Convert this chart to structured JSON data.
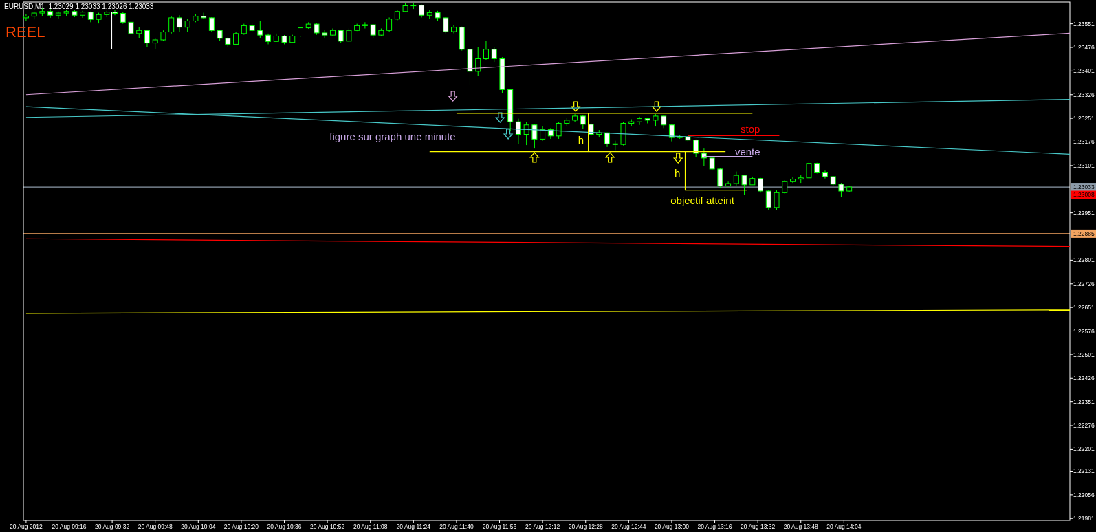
{
  "chart_data": {
    "type": "candlestick",
    "title": "EURUSD,M1  1.23029 1.23033 1.23026 1.23033",
    "subtitle": "REEL",
    "annotations": [
      "figure sur graph une minute",
      "stop",
      "vente",
      "h",
      "h",
      "objectif atteint"
    ],
    "xlim": [
      "2012-08-20T08:59",
      "2012-08-20T15:28"
    ],
    "xticks": [
      {
        "value": "2012-08-20T09:00",
        "label": "20 Aug 2012"
      },
      {
        "value": "2012-08-20T09:16",
        "label": "20 Aug 09:16"
      },
      {
        "value": "2012-08-20T09:32",
        "label": "20 Aug 09:32"
      },
      {
        "value": "2012-08-20T09:48",
        "label": "20 Aug 09:48"
      },
      {
        "value": "2012-08-20T10:04",
        "label": "20 Aug 10:04"
      },
      {
        "value": "2012-08-20T10:20",
        "label": "20 Aug 10:20"
      },
      {
        "value": "2012-08-20T10:36",
        "label": "20 Aug 10:36"
      },
      {
        "value": "2012-08-20T10:52",
        "label": "20 Aug 10:52"
      },
      {
        "value": "2012-08-20T11:08",
        "label": "20 Aug 11:08"
      },
      {
        "value": "2012-08-20T11:24",
        "label": "20 Aug 11:24"
      },
      {
        "value": "2012-08-20T11:40",
        "label": "20 Aug 11:40"
      },
      {
        "value": "2012-08-20T11:56",
        "label": "20 Aug 11:56"
      },
      {
        "value": "2012-08-20T12:12",
        "label": "20 Aug 12:12"
      },
      {
        "value": "2012-08-20T12:28",
        "label": "20 Aug 12:28"
      },
      {
        "value": "2012-08-20T12:44",
        "label": "20 Aug 12:44"
      },
      {
        "value": "2012-08-20T13:00",
        "label": "20 Aug 13:00"
      },
      {
        "value": "2012-08-20T13:16",
        "label": "20 Aug 13:16"
      },
      {
        "value": "2012-08-20T13:32",
        "label": "20 Aug 13:32"
      },
      {
        "value": "2012-08-20T13:48",
        "label": "20 Aug 13:48"
      },
      {
        "value": "2012-08-20T14:04",
        "label": "20 Aug 14:04"
      }
    ],
    "ylim": [
      1.21975,
      1.2362
    ],
    "yticks": [
      1.23551,
      1.23476,
      1.23401,
      1.23326,
      1.23251,
      1.23176,
      1.23101,
      1.22951,
      1.22801,
      1.22726,
      1.22651,
      1.22576,
      1.22501,
      1.22426,
      1.22351,
      1.22276,
      1.22201,
      1.22131,
      1.22056,
      1.21981
    ],
    "grid": false,
    "ref_lines": [
      {
        "axis": "y",
        "value": 1.23033,
        "label": "1.23033",
        "color": "#8c9aa8"
      },
      {
        "axis": "y",
        "value": 1.23008,
        "label": "1.23008",
        "color": "#ff0000"
      },
      {
        "axis": "y",
        "value": 1.22885,
        "label": "1.22885",
        "color": "#f4a460"
      }
    ],
    "series": [
      {
        "type": "candlestick",
        "color": "#00ff00",
        "x": [
          "2012-08-20T09:00",
          "2012-08-20T09:03",
          "2012-08-20T09:06",
          "2012-08-20T09:09",
          "2012-08-20T09:12",
          "2012-08-20T09:15",
          "2012-08-20T09:18",
          "2012-08-20T09:21",
          "2012-08-20T09:24",
          "2012-08-20T09:27",
          "2012-08-20T09:30",
          "2012-08-20T09:33",
          "2012-08-20T09:36",
          "2012-08-20T09:39",
          "2012-08-20T09:42",
          "2012-08-20T09:45",
          "2012-08-20T09:48",
          "2012-08-20T09:51",
          "2012-08-20T09:54",
          "2012-08-20T09:57",
          "2012-08-20T10:00",
          "2012-08-20T10:03",
          "2012-08-20T10:06",
          "2012-08-20T10:09",
          "2012-08-20T10:12",
          "2012-08-20T10:15",
          "2012-08-20T10:18",
          "2012-08-20T10:21",
          "2012-08-20T10:24",
          "2012-08-20T10:27",
          "2012-08-20T10:30",
          "2012-08-20T10:33",
          "2012-08-20T10:36",
          "2012-08-20T10:39",
          "2012-08-20T10:42",
          "2012-08-20T10:45",
          "2012-08-20T10:48",
          "2012-08-20T10:51",
          "2012-08-20T10:54",
          "2012-08-20T10:57",
          "2012-08-20T11:00",
          "2012-08-20T11:03",
          "2012-08-20T11:06",
          "2012-08-20T11:09",
          "2012-08-20T11:12",
          "2012-08-20T11:15",
          "2012-08-20T11:18",
          "2012-08-20T11:21",
          "2012-08-20T11:24",
          "2012-08-20T11:27",
          "2012-08-20T11:30",
          "2012-08-20T11:33",
          "2012-08-20T11:36",
          "2012-08-20T11:39",
          "2012-08-20T11:42",
          "2012-08-20T11:45",
          "2012-08-20T11:48",
          "2012-08-20T11:51",
          "2012-08-20T11:54",
          "2012-08-20T11:57",
          "2012-08-20T12:00",
          "2012-08-20T12:03",
          "2012-08-20T12:06",
          "2012-08-20T12:09",
          "2012-08-20T12:12",
          "2012-08-20T12:15",
          "2012-08-20T12:18",
          "2012-08-20T12:21",
          "2012-08-20T12:24",
          "2012-08-20T12:27",
          "2012-08-20T12:30",
          "2012-08-20T12:33",
          "2012-08-20T12:36",
          "2012-08-20T12:39",
          "2012-08-20T12:42",
          "2012-08-20T12:45",
          "2012-08-20T12:48",
          "2012-08-20T12:51",
          "2012-08-20T12:54",
          "2012-08-20T12:57",
          "2012-08-20T13:00",
          "2012-08-20T13:03",
          "2012-08-20T13:06",
          "2012-08-20T13:09",
          "2012-08-20T13:12",
          "2012-08-20T13:15",
          "2012-08-20T13:18",
          "2012-08-20T13:21",
          "2012-08-20T13:24",
          "2012-08-20T13:27",
          "2012-08-20T13:30",
          "2012-08-20T13:33",
          "2012-08-20T13:36",
          "2012-08-20T13:39",
          "2012-08-20T13:42",
          "2012-08-20T13:45",
          "2012-08-20T13:48",
          "2012-08-20T13:51",
          "2012-08-20T13:54",
          "2012-08-20T13:57",
          "2012-08-20T14:00",
          "2012-08-20T14:03",
          "2012-08-20T14:06"
        ],
        "ohlc": [
          [
            1.2357,
            1.23582,
            1.2356,
            1.23575
          ],
          [
            1.23575,
            1.2359,
            1.23565,
            1.23585
          ],
          [
            1.23585,
            1.236,
            1.23575,
            1.2359
          ],
          [
            1.2359,
            1.23598,
            1.2357,
            1.23578
          ],
          [
            1.23578,
            1.2359,
            1.23568,
            1.23585
          ],
          [
            1.23585,
            1.23595,
            1.23575,
            1.2359
          ],
          [
            1.2359,
            1.23594,
            1.23572,
            1.23578
          ],
          [
            1.23578,
            1.23592,
            1.2357,
            1.23588
          ],
          [
            1.23588,
            1.2359,
            1.23556,
            1.23565
          ],
          [
            1.23565,
            1.23586,
            1.23552,
            1.2358
          ],
          [
            1.2358,
            1.23592,
            1.23572,
            1.23588
          ],
          [
            1.23588,
            1.23596,
            1.23578,
            1.23584
          ],
          [
            1.23584,
            1.23588,
            1.23551,
            1.23556
          ],
          [
            1.23556,
            1.2356,
            1.23496,
            1.2352
          ],
          [
            1.2352,
            1.2354,
            1.23506,
            1.2353
          ],
          [
            1.2353,
            1.23532,
            1.23476,
            1.2349
          ],
          [
            1.2349,
            1.23505,
            1.23471,
            1.235
          ],
          [
            1.235,
            1.2353,
            1.23496,
            1.23525
          ],
          [
            1.23525,
            1.23576,
            1.2352,
            1.2357
          ],
          [
            1.2357,
            1.23578,
            1.23526,
            1.2354
          ],
          [
            1.2354,
            1.23566,
            1.23526,
            1.2356
          ],
          [
            1.2356,
            1.23582,
            1.23556,
            1.23575
          ],
          [
            1.23575,
            1.23586,
            1.23566,
            1.2357
          ],
          [
            1.2357,
            1.23572,
            1.23526,
            1.2353
          ],
          [
            1.2353,
            1.23532,
            1.23496,
            1.23505
          ],
          [
            1.23505,
            1.23508,
            1.23478,
            1.23486
          ],
          [
            1.23486,
            1.23526,
            1.23484,
            1.2352
          ],
          [
            1.2352,
            1.23551,
            1.23516,
            1.23545
          ],
          [
            1.23545,
            1.23552,
            1.23526,
            1.2353
          ],
          [
            1.2353,
            1.23561,
            1.23506,
            1.23515
          ],
          [
            1.23515,
            1.2352,
            1.23486,
            1.23495
          ],
          [
            1.23495,
            1.2352,
            1.23494,
            1.23512
          ],
          [
            1.23512,
            1.23515,
            1.23486,
            1.23492
          ],
          [
            1.23492,
            1.23516,
            1.2349,
            1.23512
          ],
          [
            1.23512,
            1.23541,
            1.2351,
            1.23538
          ],
          [
            1.23538,
            1.23556,
            1.23535,
            1.2355
          ],
          [
            1.2355,
            1.23552,
            1.23516,
            1.23522
          ],
          [
            1.23522,
            1.23531,
            1.23506,
            1.23515
          ],
          [
            1.23515,
            1.23536,
            1.23511,
            1.2353
          ],
          [
            1.2353,
            1.23531,
            1.23491,
            1.23496
          ],
          [
            1.23496,
            1.23536,
            1.23494,
            1.2353
          ],
          [
            1.2353,
            1.23551,
            1.23528,
            1.23545
          ],
          [
            1.23545,
            1.23556,
            1.23536,
            1.23548
          ],
          [
            1.23548,
            1.2355,
            1.23506,
            1.23515
          ],
          [
            1.23515,
            1.23536,
            1.23511,
            1.2353
          ],
          [
            1.2353,
            1.23571,
            1.23526,
            1.23566
          ],
          [
            1.23566,
            1.23596,
            1.23562,
            1.2359
          ],
          [
            1.2359,
            1.23616,
            1.23588,
            1.23608
          ],
          [
            1.23608,
            1.23618,
            1.23598,
            1.2361
          ],
          [
            1.2361,
            1.23612,
            1.23571,
            1.23578
          ],
          [
            1.23578,
            1.23594,
            1.23566,
            1.23586
          ],
          [
            1.23586,
            1.23592,
            1.23561,
            1.2357
          ],
          [
            1.2357,
            1.23572,
            1.23521,
            1.23526
          ],
          [
            1.23526,
            1.23546,
            1.23521,
            1.2354
          ],
          [
            1.2354,
            1.23542,
            1.23466,
            1.2347
          ],
          [
            1.2347,
            1.23472,
            1.23356,
            1.234
          ],
          [
            1.234,
            1.23476,
            1.23386,
            1.2344
          ],
          [
            1.2344,
            1.23496,
            1.23436,
            1.2347
          ],
          [
            1.2347,
            1.23476,
            1.2343,
            1.2344
          ],
          [
            1.2344,
            1.23445,
            1.2333,
            1.23342
          ],
          [
            1.23342,
            1.23345,
            1.2321,
            1.2324
          ],
          [
            1.2324,
            1.2325,
            1.2317,
            1.232
          ],
          [
            1.232,
            1.2324,
            1.23166,
            1.2323
          ],
          [
            1.2323,
            1.23232,
            1.23155,
            1.23185
          ],
          [
            1.23185,
            1.23225,
            1.2318,
            1.23215
          ],
          [
            1.23215,
            1.2322,
            1.23186,
            1.23195
          ],
          [
            1.23195,
            1.2324,
            1.23186,
            1.23235
          ],
          [
            1.23235,
            1.23252,
            1.23225,
            1.23245
          ],
          [
            1.23245,
            1.23264,
            1.2324,
            1.23258
          ],
          [
            1.23258,
            1.2326,
            1.23218,
            1.23232
          ],
          [
            1.23232,
            1.2324,
            1.23194,
            1.232
          ],
          [
            1.232,
            1.23214,
            1.2319,
            1.23205
          ],
          [
            1.23205,
            1.23206,
            1.2316,
            1.2317
          ],
          [
            1.2317,
            1.2318,
            1.2315,
            1.23168
          ],
          [
            1.23168,
            1.2324,
            1.23165,
            1.23235
          ],
          [
            1.23235,
            1.23248,
            1.23225,
            1.2324
          ],
          [
            1.2324,
            1.23256,
            1.2323,
            1.2325
          ],
          [
            1.2325,
            1.23252,
            1.23235,
            1.23245
          ],
          [
            1.23245,
            1.23264,
            1.23225,
            1.23258
          ],
          [
            1.23258,
            1.2326,
            1.2322,
            1.2323
          ],
          [
            1.2323,
            1.23232,
            1.23178,
            1.2319
          ],
          [
            1.2319,
            1.23198,
            1.23186,
            1.23192
          ],
          [
            1.23192,
            1.23194,
            1.23178,
            1.23182
          ],
          [
            1.23182,
            1.23184,
            1.23128,
            1.2314
          ],
          [
            1.2314,
            1.23155,
            1.231,
            1.23125
          ],
          [
            1.23125,
            1.23126,
            1.23085,
            1.2309
          ],
          [
            1.2309,
            1.23092,
            1.2303,
            1.23036
          ],
          [
            1.23036,
            1.2305,
            1.23034,
            1.23044
          ],
          [
            1.23044,
            1.23082,
            1.23038,
            1.2307
          ],
          [
            1.2307,
            1.23072,
            1.23008,
            1.2304
          ],
          [
            1.2304,
            1.23066,
            1.2304,
            1.2306
          ],
          [
            1.2306,
            1.23062,
            1.23015,
            1.2302
          ],
          [
            1.2302,
            1.23022,
            1.2296,
            1.22968
          ],
          [
            1.22968,
            1.23022,
            1.2296,
            1.23015
          ],
          [
            1.23015,
            1.23055,
            1.23012,
            1.2305
          ],
          [
            1.2305,
            1.23065,
            1.23046,
            1.23058
          ],
          [
            1.23058,
            1.2307,
            1.23046,
            1.23062
          ],
          [
            1.23062,
            1.23116,
            1.2306,
            1.23108
          ],
          [
            1.23108,
            1.2311,
            1.23076,
            1.2308
          ],
          [
            1.2308,
            1.23085,
            1.2306,
            1.23066
          ],
          [
            1.23066,
            1.23068,
            1.23038,
            1.23042
          ],
          [
            1.23042,
            1.23046,
            1.23002,
            1.2302
          ],
          [
            1.2302,
            1.23036,
            1.23018,
            1.23033
          ]
        ]
      },
      {
        "type": "line",
        "color": "#d8a0d8",
        "x": [
          "2012-08-20T09:00",
          "2012-08-20T15:28"
        ],
        "values": [
          1.23326,
          1.23521
        ]
      },
      {
        "type": "line",
        "color": "#48c8c8",
        "x": [
          "2012-08-20T09:00",
          "2012-08-20T15:28"
        ],
        "values": [
          1.23288,
          1.23137
        ]
      },
      {
        "type": "line",
        "color": "#48c8c8",
        "x": [
          "2012-08-20T09:00",
          "2012-08-20T15:28"
        ],
        "values": [
          1.23254,
          1.23311
        ]
      },
      {
        "type": "line",
        "color": "#ff0000",
        "x": [
          "2012-08-20T09:00",
          "2012-08-20T15:28"
        ],
        "values": [
          1.22869,
          1.22844
        ]
      },
      {
        "type": "line",
        "color": "#ffff00",
        "x": [
          "2012-08-20T09:00",
          "2012-08-20T15:28"
        ],
        "values": [
          1.22632,
          1.22643
        ]
      },
      {
        "type": "line",
        "color": "#ffff00",
        "x": [
          "2012-08-20T11:40",
          "2012-08-20T13:30"
        ],
        "values": [
          1.23267,
          1.23267
        ]
      },
      {
        "type": "line",
        "color": "#ffff00",
        "x": [
          "2012-08-20T11:30",
          "2012-08-20T13:20"
        ],
        "values": [
          1.23145,
          1.23145
        ]
      },
      {
        "type": "line",
        "color": "#ffff00",
        "x": [
          "2012-08-20T12:29",
          "2012-08-20T12:29"
        ],
        "values": [
          1.23267,
          1.23145
        ]
      },
      {
        "type": "line",
        "color": "#ffff00",
        "x": [
          "2012-08-20T13:05",
          "2012-08-20T13:05",
          "2012-08-20T13:28"
        ],
        "values": [
          1.23145,
          1.23023,
          1.23023
        ]
      },
      {
        "type": "line",
        "color": "#ff0000",
        "x": [
          "2012-08-20T13:06",
          "2012-08-20T13:40"
        ],
        "values": [
          1.23196,
          1.23196
        ]
      },
      {
        "type": "line",
        "color": "#c8a8e8",
        "x": [
          "2012-08-20T13:12",
          "2012-08-20T13:30"
        ],
        "values": [
          1.2313,
          1.2313
        ]
      }
    ]
  }
}
